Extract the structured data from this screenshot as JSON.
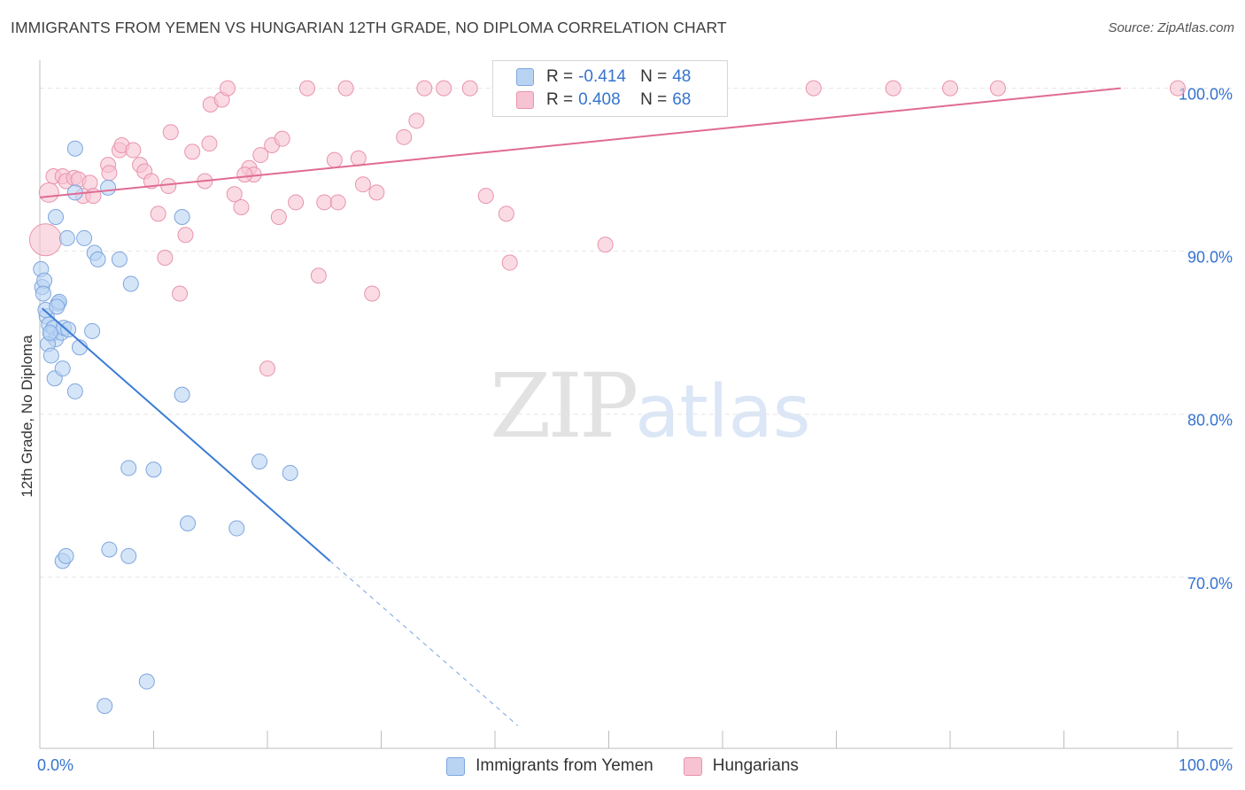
{
  "title": "IMMIGRANTS FROM YEMEN VS HUNGARIAN 12TH GRADE, NO DIPLOMA CORRELATION CHART",
  "source": "Source: ZipAtlas.com",
  "watermark": {
    "zip": "ZIP",
    "atlas": "atlas"
  },
  "legend": {
    "series1": {
      "r_label": "R =",
      "r_value": "-0.414",
      "n_label": "N =",
      "n_value": "48"
    },
    "series2": {
      "r_label": "R =",
      "r_value": "0.408",
      "n_label": "N =",
      "n_value": "68"
    }
  },
  "bottom_legend": {
    "series1": "Immigrants from Yemen",
    "series2": "Hungarians"
  },
  "colors": {
    "blue_fill": "#b9d3f3",
    "blue_stroke": "#7ea6de",
    "blue_line": "#3a7bd5",
    "pink_fill": "#f7c3d2",
    "pink_stroke": "#e993ad",
    "pink_line": "#e06b93",
    "tick_label": "#3573cf",
    "grid": "#e6e6e6"
  },
  "chart_data": {
    "type": "scatter",
    "title": "IMMIGRANTS FROM YEMEN VS HUNGARIAN 12TH GRADE, NO DIPLOMA CORRELATION CHART",
    "xlabel": "",
    "ylabel": "12th Grade, No Diploma",
    "xlim": [
      0,
      100
    ],
    "ylim": [
      59.5,
      101.5
    ],
    "x_tick_labels": [
      {
        "x": 0,
        "label": "0.0%"
      },
      {
        "x": 100,
        "label": "100.0%"
      }
    ],
    "y_tick_labels": [
      {
        "y": 100,
        "label": "100.0%"
      },
      {
        "y": 90,
        "label": "90.0%"
      },
      {
        "y": 80,
        "label": "80.0%"
      },
      {
        "y": 70,
        "label": "70.0%"
      }
    ],
    "grid": true,
    "series": [
      {
        "name": "Immigrants from Yemen",
        "color": "#3a7bd5",
        "r": -0.414,
        "n": 48,
        "trend": {
          "x0": 0.2,
          "y0": 86.5,
          "x1": 25.5,
          "y1": 71.0,
          "dash_x1": 42.0
        },
        "points": [
          [
            0.1,
            88.9
          ],
          [
            0.2,
            87.8
          ],
          [
            0.4,
            88.2
          ],
          [
            0.3,
            87.4
          ],
          [
            0.6,
            86.0
          ],
          [
            0.8,
            85.5
          ],
          [
            1.0,
            84.9
          ],
          [
            1.2,
            85.3
          ],
          [
            1.4,
            84.6
          ],
          [
            1.6,
            86.8
          ],
          [
            1.7,
            86.9
          ],
          [
            1.9,
            85.0
          ],
          [
            2.1,
            85.3
          ],
          [
            0.7,
            84.3
          ],
          [
            1.3,
            82.2
          ],
          [
            2.0,
            82.8
          ],
          [
            3.1,
            81.4
          ],
          [
            3.5,
            84.1
          ],
          [
            4.6,
            85.1
          ],
          [
            1.4,
            92.1
          ],
          [
            2.4,
            90.8
          ],
          [
            3.9,
            90.8
          ],
          [
            4.8,
            89.9
          ],
          [
            5.1,
            89.5
          ],
          [
            7.0,
            89.5
          ],
          [
            8.0,
            88.0
          ],
          [
            3.1,
            93.6
          ],
          [
            6.0,
            93.9
          ],
          [
            3.1,
            96.3
          ],
          [
            12.5,
            92.1
          ],
          [
            12.5,
            81.2
          ],
          [
            7.8,
            76.7
          ],
          [
            10.0,
            76.6
          ],
          [
            19.3,
            77.1
          ],
          [
            22.0,
            76.4
          ],
          [
            13.0,
            73.3
          ],
          [
            17.3,
            73.0
          ],
          [
            6.1,
            71.7
          ],
          [
            7.8,
            71.3
          ],
          [
            2.0,
            71.0
          ],
          [
            2.3,
            71.3
          ],
          [
            9.4,
            63.6
          ],
          [
            5.7,
            62.1
          ],
          [
            1.0,
            83.6
          ],
          [
            0.5,
            86.4
          ],
          [
            1.5,
            86.6
          ],
          [
            2.5,
            85.2
          ],
          [
            0.9,
            85.0
          ]
        ]
      },
      {
        "name": "Hungarians",
        "color": "#e06b93",
        "r": 0.408,
        "n": 68,
        "trend": {
          "x0": 0.0,
          "y0": 93.3,
          "x1": 95.0,
          "y1": 100.0
        },
        "points": [
          [
            0.5,
            90.7
          ],
          [
            0.8,
            93.6
          ],
          [
            1.2,
            94.6
          ],
          [
            2.0,
            94.6
          ],
          [
            2.3,
            94.3
          ],
          [
            3.0,
            94.5
          ],
          [
            3.4,
            94.4
          ],
          [
            3.8,
            93.4
          ],
          [
            4.4,
            94.2
          ],
          [
            4.7,
            93.4
          ],
          [
            6.0,
            95.3
          ],
          [
            6.1,
            94.8
          ],
          [
            7.0,
            96.2
          ],
          [
            7.2,
            96.5
          ],
          [
            8.2,
            96.2
          ],
          [
            8.8,
            95.3
          ],
          [
            9.2,
            94.9
          ],
          [
            9.8,
            94.3
          ],
          [
            10.4,
            92.3
          ],
          [
            11.3,
            94.0
          ],
          [
            11.0,
            89.6
          ],
          [
            11.5,
            97.3
          ],
          [
            12.3,
            87.4
          ],
          [
            12.8,
            91.0
          ],
          [
            13.4,
            96.1
          ],
          [
            14.5,
            94.3
          ],
          [
            14.9,
            96.6
          ],
          [
            15.0,
            99.0
          ],
          [
            16.0,
            99.3
          ],
          [
            16.5,
            100.0
          ],
          [
            17.1,
            93.5
          ],
          [
            17.7,
            92.7
          ],
          [
            18.4,
            95.1
          ],
          [
            18.8,
            94.7
          ],
          [
            19.4,
            95.9
          ],
          [
            20.4,
            96.5
          ],
          [
            21.0,
            92.1
          ],
          [
            21.3,
            96.9
          ],
          [
            22.5,
            93.0
          ],
          [
            23.5,
            100.0
          ],
          [
            24.5,
            88.5
          ],
          [
            25.0,
            93.0
          ],
          [
            25.9,
            95.6
          ],
          [
            26.2,
            93.0
          ],
          [
            26.9,
            100.0
          ],
          [
            28.0,
            95.7
          ],
          [
            28.4,
            94.1
          ],
          [
            29.2,
            87.4
          ],
          [
            29.6,
            93.6
          ],
          [
            32.0,
            97.0
          ],
          [
            33.1,
            98.0
          ],
          [
            33.8,
            100.0
          ],
          [
            35.5,
            100.0
          ],
          [
            37.8,
            100.0
          ],
          [
            39.2,
            93.4
          ],
          [
            40.5,
            100.0
          ],
          [
            41.0,
            92.3
          ],
          [
            41.3,
            89.3
          ],
          [
            49.7,
            90.4
          ],
          [
            53.5,
            100.0
          ],
          [
            57.0,
            100.0
          ],
          [
            68.0,
            100.0
          ],
          [
            75.0,
            100.0
          ],
          [
            80.0,
            100.0
          ],
          [
            84.2,
            100.0
          ],
          [
            100.0,
            100.0
          ],
          [
            18.0,
            94.7
          ],
          [
            20.0,
            82.8
          ]
        ]
      }
    ]
  }
}
